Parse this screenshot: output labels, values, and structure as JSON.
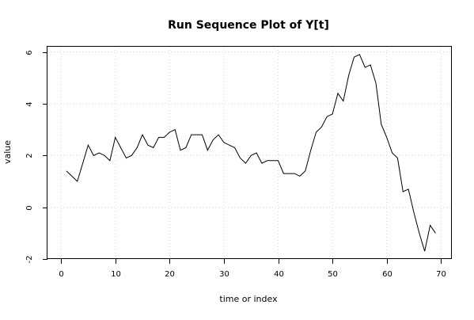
{
  "chart_data": {
    "type": "line",
    "title": "Run Sequence Plot of Y[t]",
    "xlabel": "time or index",
    "ylabel": "value",
    "xlim": [
      -2.5,
      72.0
    ],
    "ylim": [
      -2.0,
      6.2
    ],
    "x_ticks": [
      0,
      10,
      20,
      30,
      40,
      50,
      60,
      70
    ],
    "y_ticks": [
      -2,
      0,
      2,
      4,
      6
    ],
    "x_tick_labels": [
      "0",
      "10",
      "20",
      "30",
      "40",
      "50",
      "60",
      "70"
    ],
    "y_tick_labels": [
      "-2",
      "0",
      "2",
      "4",
      "6"
    ],
    "grid": true,
    "line_color": "#000000",
    "grid_color": "#d8d8d8",
    "series": [
      {
        "x": [
          1,
          2,
          3,
          4,
          5,
          6,
          7,
          8,
          9,
          10,
          11,
          12,
          13,
          14,
          15,
          16,
          17,
          18,
          19,
          20,
          21,
          22,
          23,
          24,
          25,
          26,
          27,
          28,
          29,
          30,
          31,
          32,
          33,
          34,
          35,
          36,
          37,
          38,
          39,
          40,
          41,
          42,
          43,
          44,
          45,
          46,
          47,
          48,
          49,
          50,
          51,
          52,
          53,
          54,
          55,
          56,
          57,
          58,
          59,
          60,
          61,
          62,
          63,
          64,
          65,
          66,
          67,
          68,
          69
        ],
        "values": [
          1.4,
          1.2,
          1.0,
          1.7,
          2.4,
          2.0,
          2.1,
          2.0,
          1.8,
          2.7,
          2.3,
          1.9,
          2.0,
          2.3,
          2.8,
          2.4,
          2.3,
          2.7,
          2.7,
          2.9,
          3.0,
          2.2,
          2.3,
          2.8,
          2.8,
          2.8,
          2.2,
          2.6,
          2.8,
          2.5,
          2.4,
          2.3,
          1.9,
          1.7,
          2.0,
          2.1,
          1.7,
          1.8,
          1.8,
          1.8,
          1.3,
          1.3,
          1.3,
          1.2,
          1.4,
          2.2,
          2.9,
          3.1,
          3.5,
          3.6,
          4.4,
          4.1,
          5.1,
          5.8,
          5.9,
          5.4,
          5.5,
          4.8,
          3.2,
          2.7,
          2.1,
          1.9,
          0.6,
          0.7,
          -0.2,
          -1.0,
          -1.7,
          -0.7,
          -1.0
        ]
      }
    ]
  }
}
